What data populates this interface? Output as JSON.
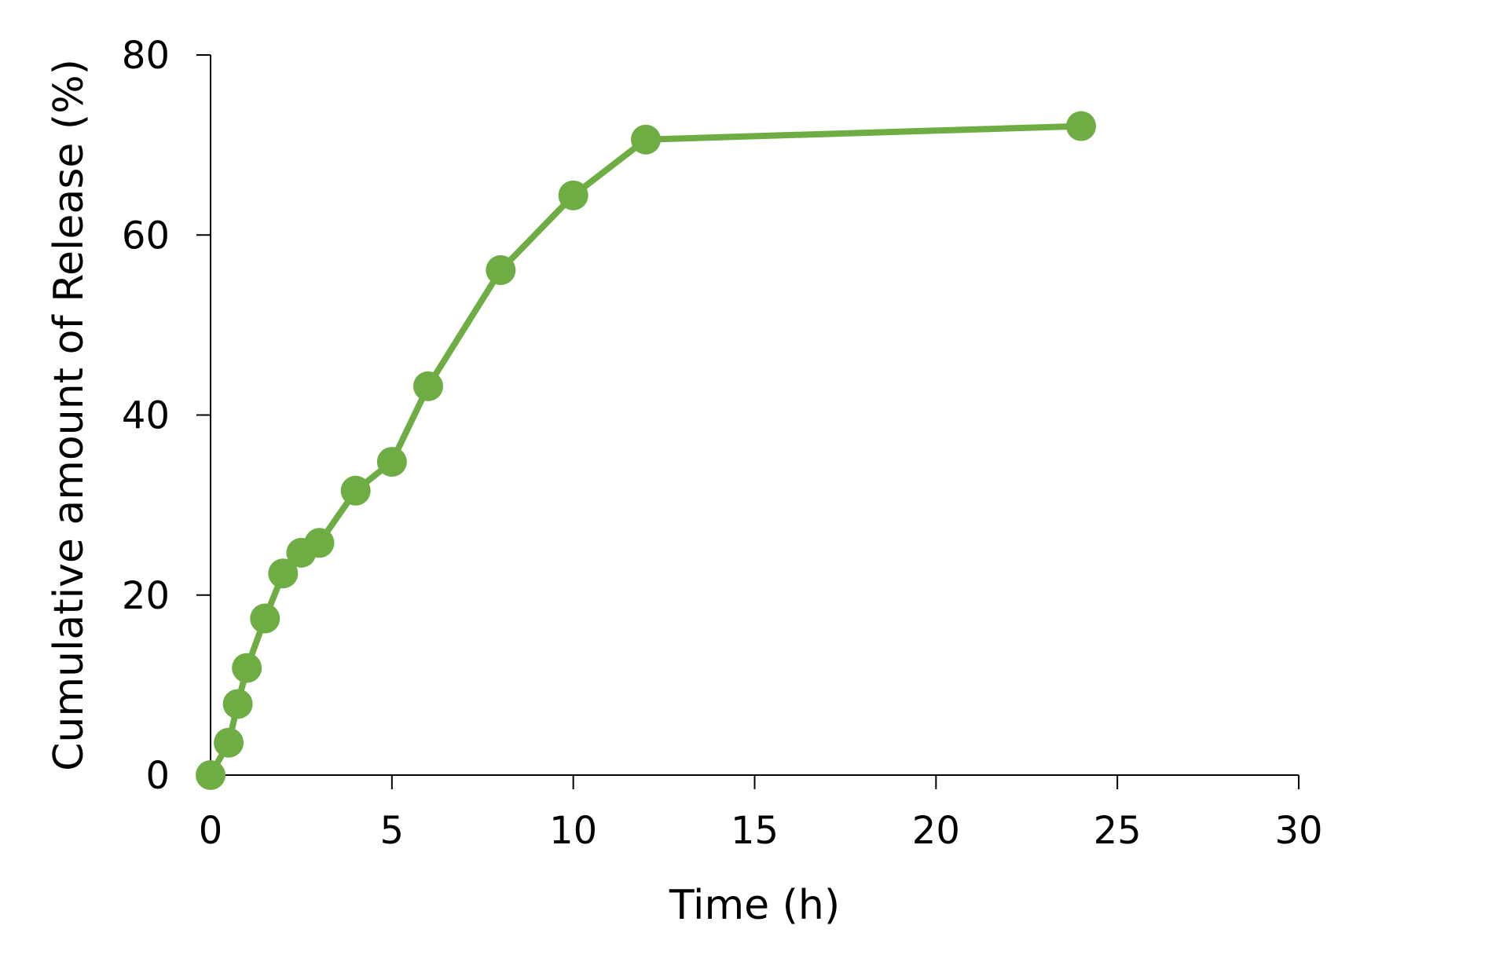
{
  "chart_data": {
    "type": "line",
    "title": "",
    "xlabel": "Time (h)",
    "ylabel": "Cumulative amount of Release (%)",
    "xlim": [
      0,
      30
    ],
    "ylim": [
      0,
      80
    ],
    "x_ticks": [
      0,
      5,
      10,
      15,
      20,
      25,
      30
    ],
    "y_ticks": [
      0,
      20,
      40,
      60,
      80
    ],
    "x_tick_labels": [
      "0",
      "5",
      "10",
      "15",
      "20",
      "25",
      "30"
    ],
    "y_tick_labels": [
      "0",
      "20",
      "40",
      "60",
      "80"
    ],
    "grid": false,
    "legend": "none",
    "series": [
      {
        "color": "#6EAD44",
        "marker": "circle",
        "x": [
          0,
          0.5,
          0.75,
          1,
          1.5,
          2,
          2.5,
          3,
          4,
          5,
          6,
          8,
          10,
          12,
          24
        ],
        "y": [
          0,
          3.6,
          7.9,
          11.9,
          17.4,
          22.4,
          24.7,
          25.8,
          31.6,
          34.8,
          43.2,
          56.1,
          64.4,
          70.6,
          72.1
        ]
      }
    ]
  }
}
